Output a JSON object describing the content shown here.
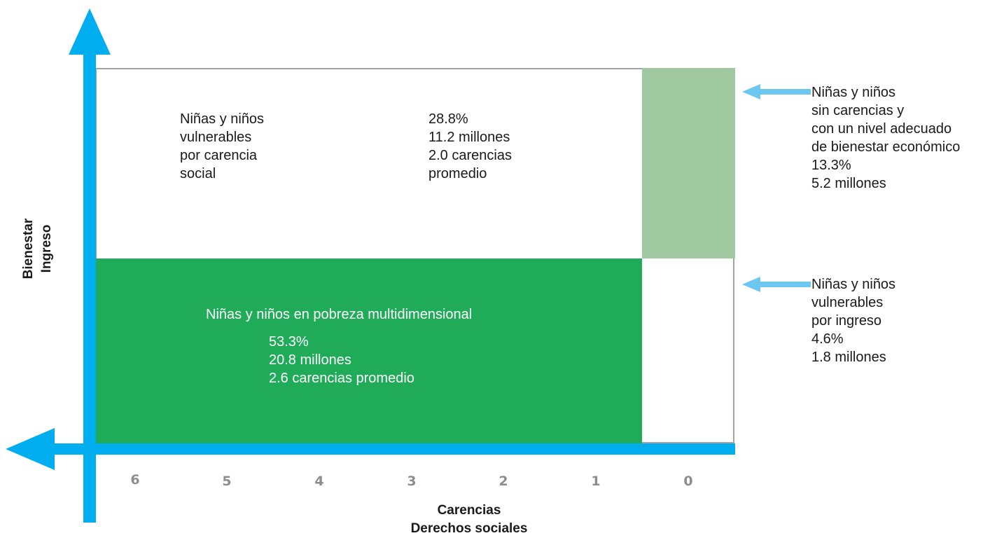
{
  "regions": {
    "social_vulnerable": {
      "title": "Niñas y niños\nvulnerables\npor carencia\nsocial",
      "stats": "28.8%\n11.2 millones\n2.0 carencias\npromedio"
    },
    "multidimensional_poverty": {
      "title": "Niñas y niños en pobreza multidimensional",
      "stats": "53.3%\n20.8 millones\n2.6 carencias promedio"
    }
  },
  "callouts": {
    "no_deprivation": "Niñas y niños\nsin carencias y\ncon un nivel adecuado\nde bienestar económico\n13.3%\n5.2 millones",
    "income_vulnerable": "Niñas y niños\nvulnerables\npor ingreso\n4.6%\n1.8 millones"
  },
  "x_ticks": [
    "6",
    "5",
    "4",
    "3",
    "2",
    "1",
    "0"
  ],
  "axes": {
    "x_label": "Carencias\nDerechos sociales",
    "y_label": "Bienestar\nIngreso"
  },
  "colors": {
    "axis": "#00aeef",
    "pointer": "#6cc8f0",
    "poverty_fill": "#20ab58",
    "no_deprivation_fill": "#a0c9a2"
  }
}
